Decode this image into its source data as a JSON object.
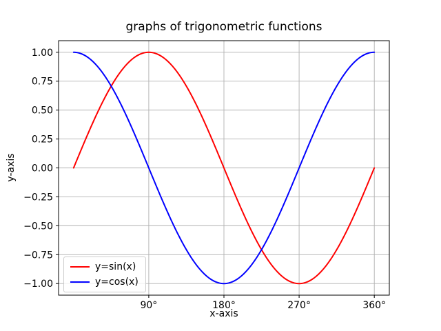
{
  "figure": {
    "background": "#ffffff",
    "title": "graphs of trigonometric functions"
  },
  "chart_data": {
    "type": "line",
    "title": "graphs of trigonometric functions",
    "xlabel": "x-axis",
    "ylabel": "y-axis",
    "grid": true,
    "legend_position": "lower left",
    "xlim": [
      -18,
      378
    ],
    "ylim": [
      -1.1,
      1.1
    ],
    "x_domain": [
      0,
      360
    ],
    "x_unit": "degrees",
    "axes_color": "#000000",
    "grid_color": "#b0b0b0",
    "x_ticks": {
      "values": [
        90,
        180,
        270,
        360
      ],
      "labels": [
        "90°",
        "180°",
        "270°",
        "360°"
      ]
    },
    "y_ticks": {
      "values": [
        -1,
        -0.75,
        -0.5,
        -0.25,
        0,
        0.25,
        0.5,
        0.75,
        1
      ],
      "labels": [
        "−1.00",
        "−0.75",
        "−0.50",
        "−0.25",
        "0.00",
        "0.25",
        "0.50",
        "0.75",
        "1.00"
      ]
    },
    "series": [
      {
        "id": "sin",
        "name": "y=sin(x)",
        "color": "#ff0000",
        "fn": "sin",
        "sample_x": [
          0,
          45,
          90,
          135,
          180,
          225,
          270,
          315,
          360
        ],
        "sample_y": [
          0,
          0.7071,
          1,
          0.7071,
          0,
          -0.7071,
          -1,
          -0.7071,
          0
        ]
      },
      {
        "id": "cos",
        "name": "y=cos(x)",
        "color": "#0000ff",
        "fn": "cos",
        "sample_x": [
          0,
          45,
          90,
          135,
          180,
          225,
          270,
          315,
          360
        ],
        "sample_y": [
          1,
          0.7071,
          0,
          -0.7071,
          -1,
          -0.7071,
          0,
          0.7071,
          1
        ]
      }
    ]
  }
}
